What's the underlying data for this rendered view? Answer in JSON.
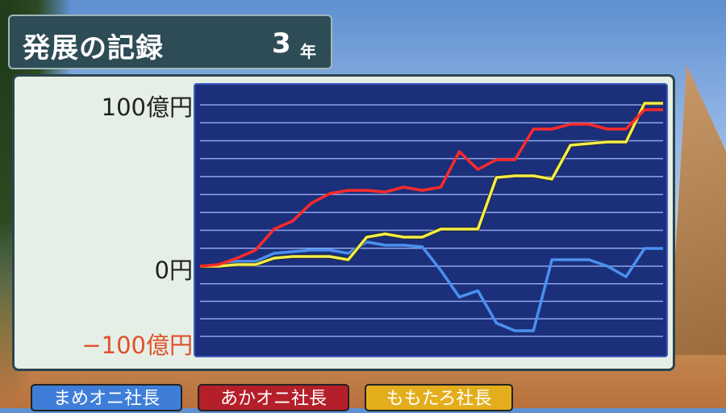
{
  "header": {
    "title": "発展の記録",
    "year_value": "3",
    "year_unit": "年"
  },
  "y_labels": {
    "top": "100億円",
    "zero": "0円",
    "bottom": "−100億円"
  },
  "players": [
    {
      "label": "まめオニ社長",
      "color": "#4a8ee8"
    },
    {
      "label": "あかオニ社長",
      "color": "#c4242c"
    },
    {
      "label": "ももたろ社長",
      "color": "#e6b21c"
    }
  ],
  "chart_data": {
    "type": "line",
    "title": "発展の記録",
    "ylabel": "",
    "y_tick_labels": [
      "100億円",
      "0円",
      "−100億円"
    ],
    "ylim": [
      -100,
      100
    ],
    "grid": true,
    "x": [
      0,
      1,
      2,
      3,
      4,
      5,
      6,
      7,
      8,
      9,
      10,
      11,
      12,
      13,
      14,
      15,
      16,
      17,
      18,
      19,
      20,
      21,
      22,
      23,
      24,
      25
    ],
    "series": [
      {
        "name": "あかオニ社長",
        "color": "#ff2a2a",
        "values": [
          0,
          1,
          5,
          10,
          23,
          28,
          39,
          45,
          47,
          47,
          46,
          49,
          47,
          49,
          71,
          60,
          66,
          66,
          85,
          85,
          88,
          88,
          85,
          85,
          97,
          97
        ]
      },
      {
        "name": "ももたろ社長",
        "color": "#f2ee4a",
        "values": [
          0,
          0,
          1,
          1,
          5,
          6,
          6,
          6,
          4,
          18,
          20,
          18,
          18,
          23,
          23,
          23,
          55,
          56,
          56,
          54,
          75,
          76,
          77,
          77,
          101,
          101
        ]
      },
      {
        "name": "まめオニ社長",
        "color": "#4a90f0",
        "values": [
          0,
          0,
          3,
          3,
          8,
          9,
          10,
          10,
          8,
          15,
          13,
          13,
          12,
          -6,
          -44,
          -35,
          -81,
          -92,
          -92,
          4,
          4,
          4,
          0,
          -15,
          11,
          11
        ]
      }
    ]
  }
}
